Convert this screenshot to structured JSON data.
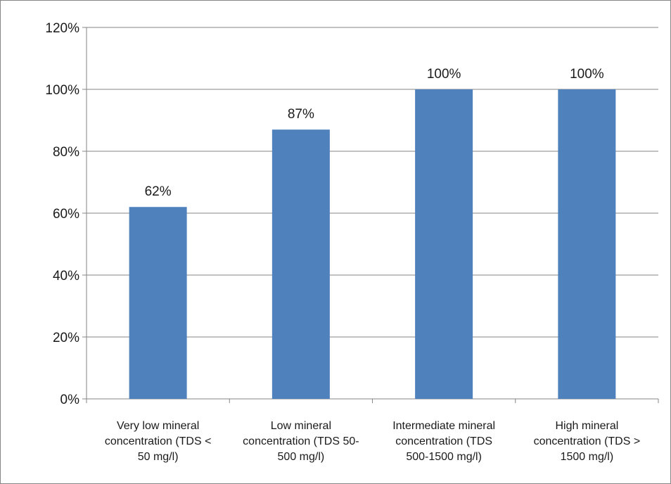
{
  "chart_data": {
    "type": "bar",
    "title": "",
    "xlabel": "",
    "ylabel": "",
    "categories": [
      [
        "Very low mineral",
        "concentration (TDS <",
        "50 mg/l)"
      ],
      [
        "Low mineral",
        "concentration (TDS 50-",
        "500 mg/l)"
      ],
      [
        "Intermediate mineral",
        "concentration (TDS",
        "500-1500 mg/l)"
      ],
      [
        "High mineral",
        "concentration (TDS >",
        "1500 mg/l)"
      ]
    ],
    "values": [
      62,
      87,
      100,
      100
    ],
    "data_labels": [
      "62%",
      "87%",
      "100%",
      "100%"
    ],
    "ylim": [
      0,
      120
    ],
    "yticks": [
      0,
      20,
      40,
      60,
      80,
      100,
      120
    ],
    "ytick_labels": [
      "0%",
      "20%",
      "40%",
      "60%",
      "80%",
      "100%",
      "120%"
    ],
    "grid": true,
    "legend": "none",
    "colors": {
      "bar": "#4f81bd",
      "grid": "#868686",
      "axis": "#868686",
      "text": "#1a1a1a"
    }
  }
}
